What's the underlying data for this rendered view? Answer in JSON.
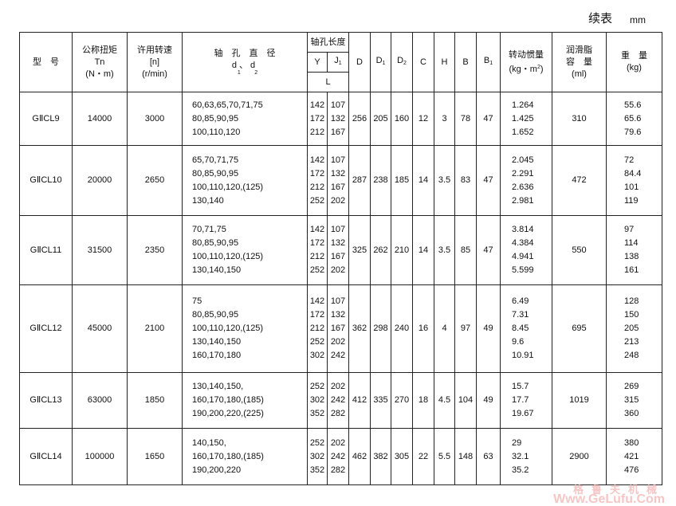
{
  "caption": "续表",
  "unit": "mm",
  "headers": {
    "model": "型　号",
    "torque": [
      "公称扭矩",
      "Tn",
      "(N・m)"
    ],
    "speed": [
      "许用转速",
      "[n]",
      "(r/min)"
    ],
    "bore": [
      "轴　孔　直　径",
      "d、d"
    ],
    "bore_sub": [
      "1",
      "2"
    ],
    "length": "轴孔长度",
    "y": "Y",
    "j1": "J",
    "j1_sub": "1",
    "l": "L",
    "D": "D",
    "D1": "D",
    "D1_sub": "1",
    "D2": "D",
    "D2_sub": "2",
    "C": "C",
    "H": "H",
    "B": "B",
    "B1": "B",
    "B1_sub": "1",
    "inertia": [
      "转动惯量",
      "(kg・m",
      "2",
      ")"
    ],
    "grease": [
      "润滑脂",
      "容　量",
      "(ml)"
    ],
    "weight": [
      "重　量",
      "(kg)"
    ]
  },
  "rows": [
    {
      "model": "GⅡCL9",
      "torque": "14000",
      "speed": "3000",
      "bores": [
        "60,63,65,70,71,75",
        "80,85,90,95",
        "100,110,120"
      ],
      "y": [
        "142",
        "172",
        "212"
      ],
      "j1": [
        "107",
        "132",
        "167"
      ],
      "D": "256",
      "D1": "205",
      "D2": "160",
      "C": "12",
      "H": "3",
      "B": "78",
      "B1": "47",
      "inertia": [
        "1.264",
        "1.425",
        "1.652"
      ],
      "grease": "310",
      "weight": [
        "55.6",
        "65.6",
        "79.6"
      ]
    },
    {
      "model": "GⅡCL10",
      "torque": "20000",
      "speed": "2650",
      "bores": [
        "65,70,71,75",
        "80,85,90,95",
        "100,110,120,(125)",
        "130,140"
      ],
      "y": [
        "142",
        "172",
        "212",
        "252"
      ],
      "j1": [
        "107",
        "132",
        "167",
        "202"
      ],
      "D": "287",
      "D1": "238",
      "D2": "185",
      "C": "14",
      "H": "3.5",
      "B": "83",
      "B1": "47",
      "inertia": [
        "2.045",
        "2.291",
        "2.636",
        "2.981"
      ],
      "grease": "472",
      "weight": [
        "72",
        "84.4",
        "101",
        "119"
      ]
    },
    {
      "model": "GⅡCL11",
      "torque": "31500",
      "speed": "2350",
      "bores": [
        "70,71,75",
        "80,85,90,95",
        "100,110,120,(125)",
        "130,140,150"
      ],
      "y": [
        "142",
        "172",
        "212",
        "252"
      ],
      "j1": [
        "107",
        "132",
        "167",
        "202"
      ],
      "D": "325",
      "D1": "262",
      "D2": "210",
      "C": "14",
      "H": "3.5",
      "B": "85",
      "B1": "47",
      "inertia": [
        "3.814",
        "4.384",
        "4.941",
        "5.599"
      ],
      "grease": "550",
      "weight": [
        "97",
        "114",
        "138",
        "161"
      ]
    },
    {
      "model": "GⅡCL12",
      "torque": "45000",
      "speed": "2100",
      "bores": [
        "75",
        "80,85,90,95",
        "100,110,120,(125)",
        "130,140,150",
        "160,170,180"
      ],
      "y": [
        "142",
        "172",
        "212",
        "252",
        "302"
      ],
      "j1": [
        "107",
        "132",
        "167",
        "202",
        "242"
      ],
      "D": "362",
      "D1": "298",
      "D2": "240",
      "C": "16",
      "H": "4",
      "B": "97",
      "B1": "49",
      "inertia": [
        "6.49",
        "7.31",
        "8.45",
        "9.6",
        "10.91"
      ],
      "grease": "695",
      "weight": [
        "128",
        "150",
        "205",
        "213",
        "248"
      ]
    },
    {
      "model": "GⅡCL13",
      "torque": "63000",
      "speed": "1850",
      "bores": [
        "130,140,150,",
        "160,170,180,(185)",
        "190,200,220,(225)"
      ],
      "y": [
        "252",
        "302",
        "352"
      ],
      "j1": [
        "202",
        "242",
        "282"
      ],
      "D": "412",
      "D1": "335",
      "D2": "270",
      "C": "18",
      "H": "4.5",
      "B": "104",
      "B1": "49",
      "inertia": [
        "15.7",
        "17.7",
        "19.67"
      ],
      "grease": "1019",
      "weight": [
        "269",
        "315",
        "360"
      ]
    },
    {
      "model": "GⅡCL14",
      "torque": "100000",
      "speed": "1650",
      "bores": [
        "140,150,",
        "160,170,180,(185)",
        "190,200,220"
      ],
      "y": [
        "252",
        "302",
        "352"
      ],
      "j1": [
        "202",
        "242",
        "282"
      ],
      "D": "462",
      "D1": "382",
      "D2": "305",
      "C": "22",
      "H": "5.5",
      "B": "148",
      "B1": "63",
      "inertia": [
        "29",
        "32.1",
        "35.2"
      ],
      "grease": "2900",
      "weight": [
        "380",
        "421",
        "476"
      ]
    }
  ],
  "watermark": {
    "cn": "格鲁夫机械",
    "en": "Www.GeLufu.Com",
    "color": "#f2b8b8"
  }
}
